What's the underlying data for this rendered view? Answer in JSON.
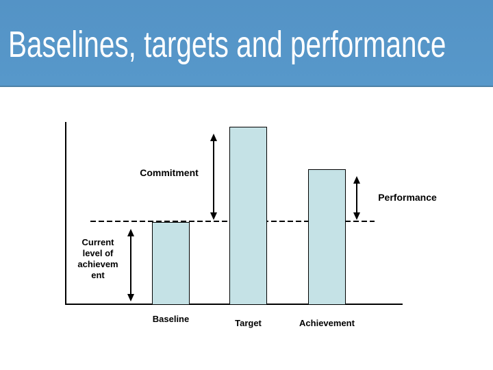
{
  "slide": {
    "title": "Baselines, targets and performance",
    "colors": {
      "header_bg": "#5697c9",
      "header_border": "#4d81a6",
      "title_text": "#ffffff",
      "body_bg": "#ffffff",
      "bar_fill": "#c5e2e6",
      "bar_border": "#000000",
      "line_color": "#000000"
    }
  },
  "chart_data": {
    "type": "bar",
    "title": "",
    "xlabel": "",
    "ylabel": "",
    "categories": [
      "Baseline",
      "Target",
      "Achievement"
    ],
    "values": [
      46,
      100,
      76
    ],
    "value_note": "relative heights, % of Target bar; no numeric axis shown",
    "ylim": [
      0,
      100
    ],
    "grid": false,
    "legend": "none",
    "reference_line": {
      "level": 46,
      "style": "dashed",
      "meaning": "current level of achievement"
    },
    "annotations": [
      {
        "label": "Commitment",
        "x": 312,
        "from_level": 100,
        "to_level": 46,
        "arrow": "double",
        "label_pos": "left-of-arrow"
      },
      {
        "label": "Performance",
        "x": 521,
        "from_level": 76,
        "to_level": 46,
        "arrow": "double",
        "label_pos": "right-of-arrow"
      },
      {
        "label": "Current level of achievement",
        "label_lines": [
          "Current",
          "level of",
          "achievem",
          "ent"
        ],
        "x": 191,
        "from_level": 46,
        "to_level": 0,
        "arrow": "double",
        "label_pos": "left-of-arrow"
      }
    ]
  }
}
